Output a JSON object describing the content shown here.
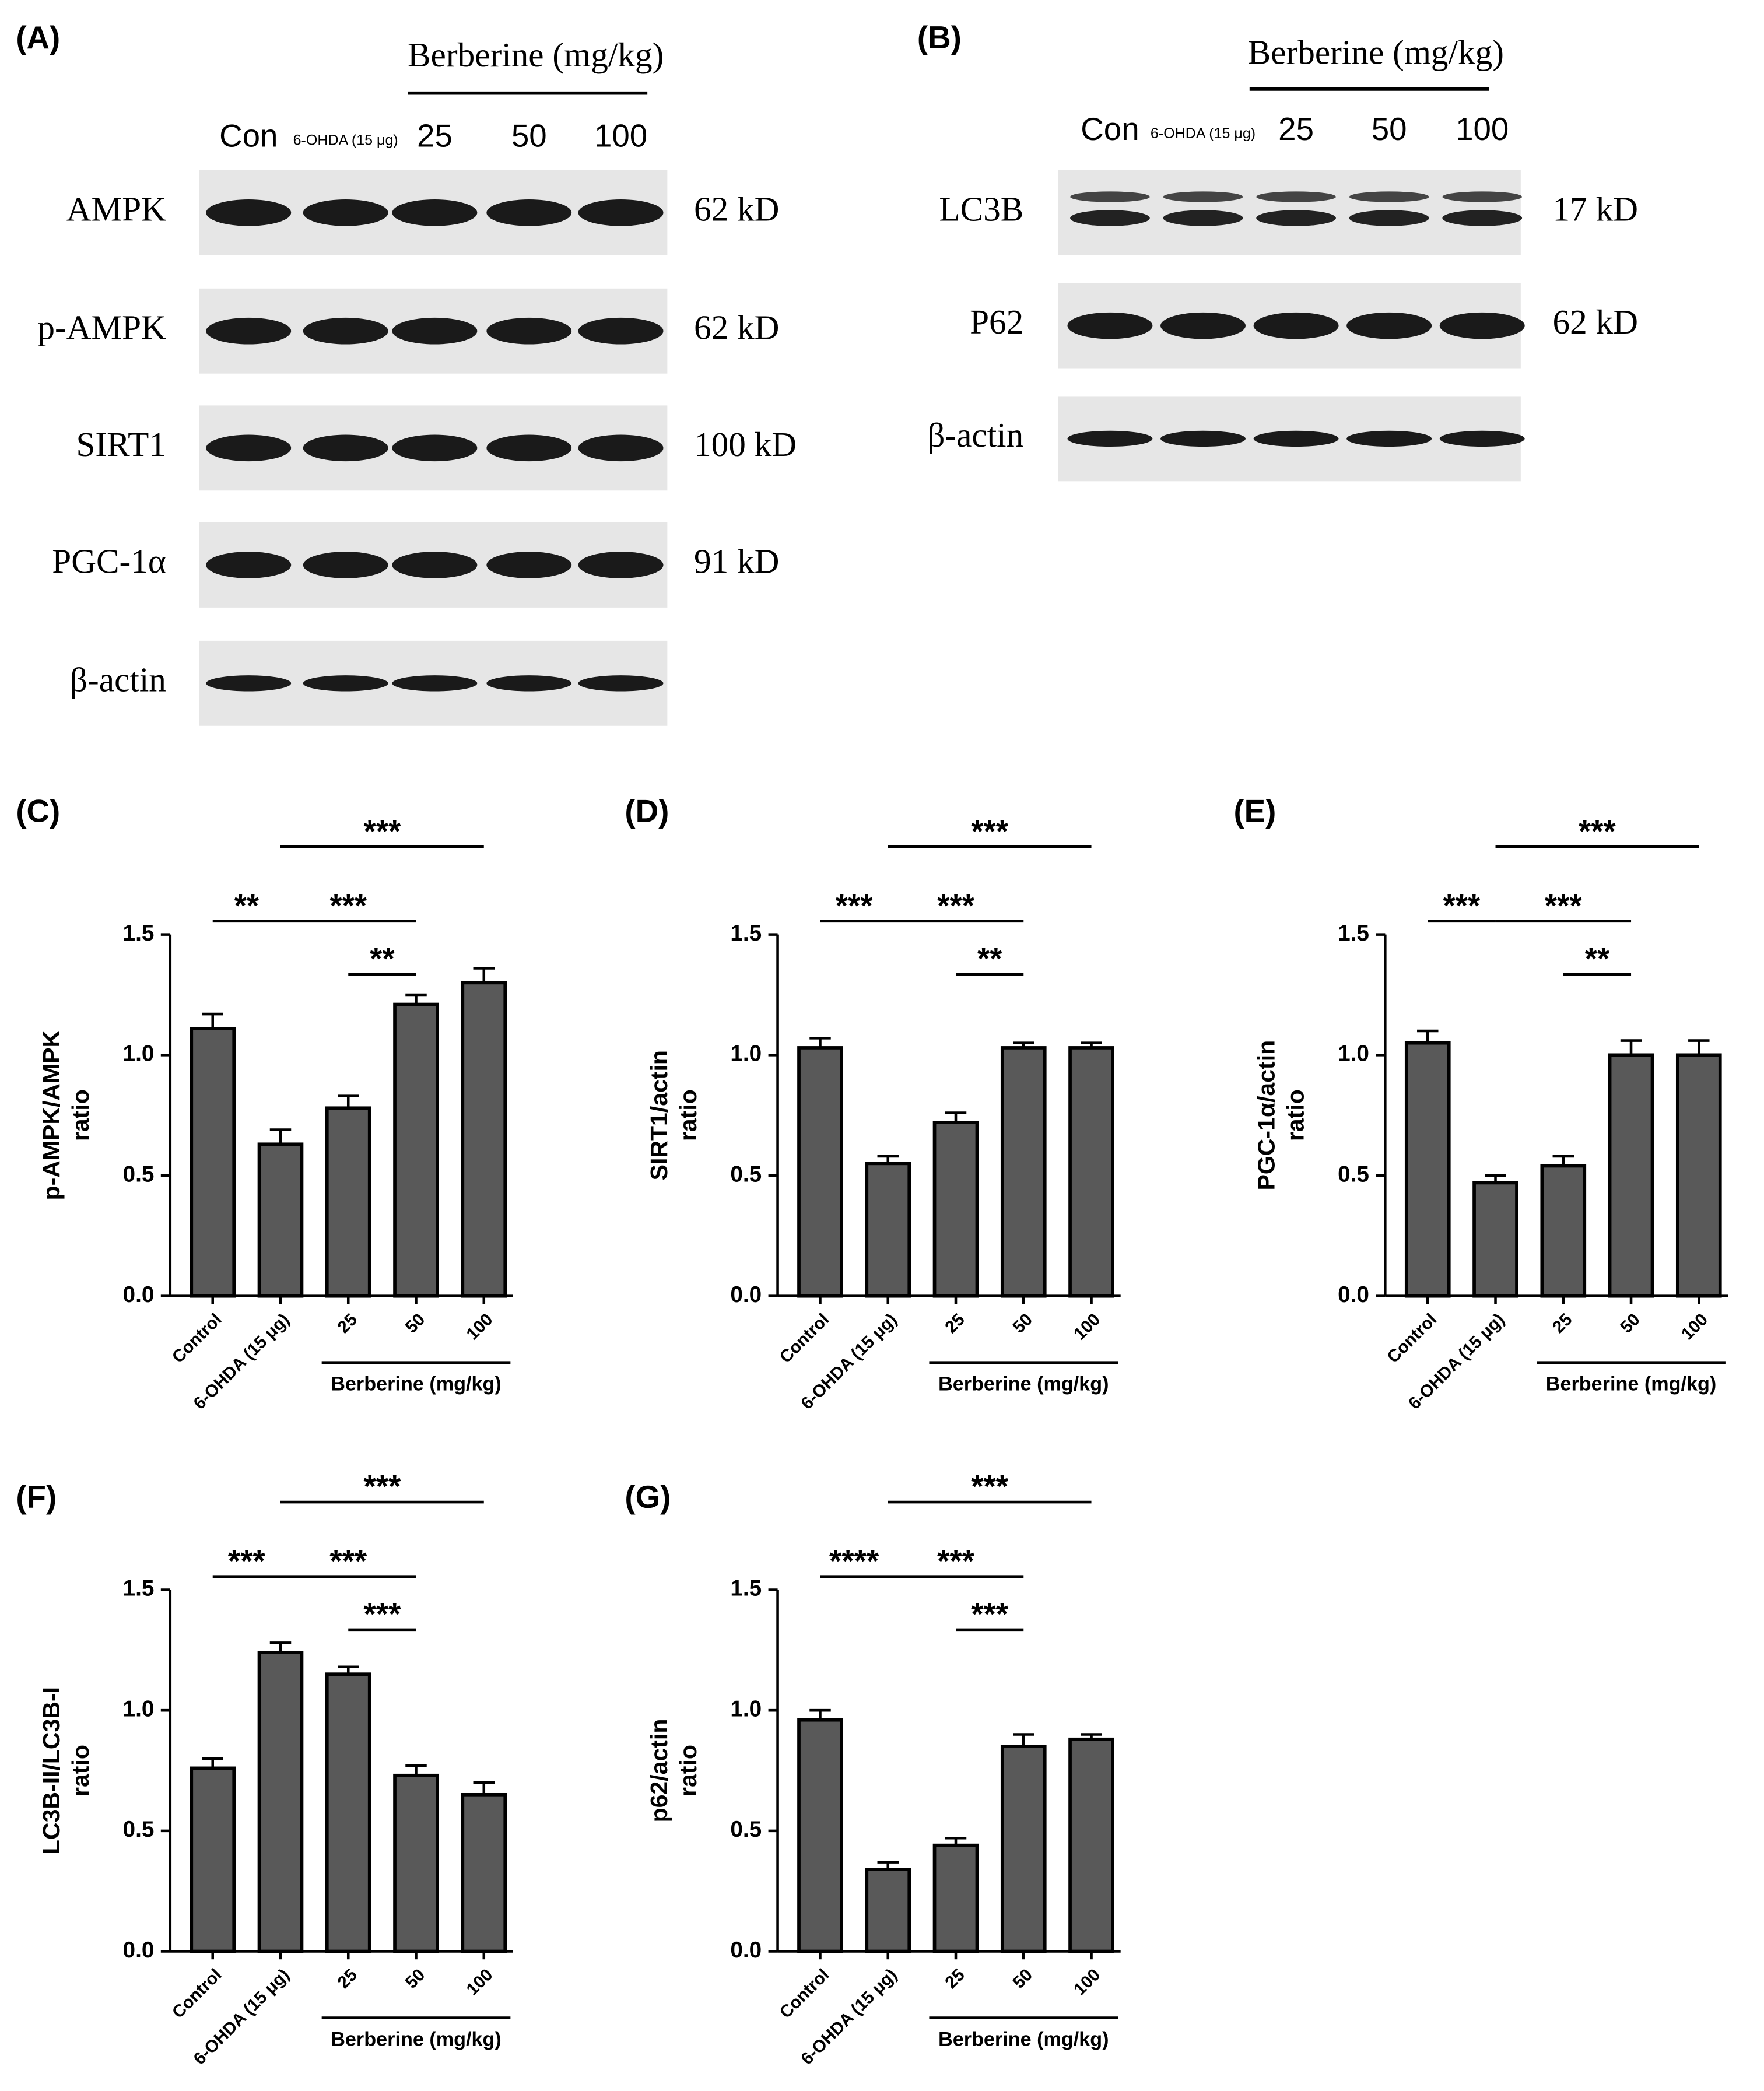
{
  "blots": [
    {
      "panel": "(A)",
      "group_label": "Berberine (mg/kg)",
      "lanes": [
        "Con",
        "6-OHDA (15 μg)",
        "25",
        "50",
        "100"
      ],
      "rows": [
        {
          "protein": "AMPK",
          "size": "62 kD"
        },
        {
          "protein": "p-AMPK",
          "size": "62 kD"
        },
        {
          "protein": "SIRT1",
          "size": "100 kD"
        },
        {
          "protein": "PGC-1α",
          "size": "91 kD"
        },
        {
          "protein": "β-actin"
        }
      ]
    },
    {
      "panel": "(B)",
      "group_label": "Berberine (mg/kg)",
      "lanes": [
        "Con",
        "6-OHDA (15 μg)",
        "25",
        "50",
        "100"
      ],
      "rows": [
        {
          "protein": "LC3B",
          "size": "17 kD"
        },
        {
          "protein": "P62",
          "size": "62 kD"
        },
        {
          "protein": "β-actin"
        }
      ]
    }
  ],
  "chart_data": [
    {
      "type": "bar",
      "panel": "(C)",
      "ylabel": [
        "p-AMPK/AMPK",
        "ratio"
      ],
      "categories": [
        "Control",
        "6-OHDA (15 μg)",
        "25",
        "50",
        "100"
      ],
      "group_label": "Berberine (mg/kg)",
      "values": [
        1.11,
        0.63,
        0.78,
        1.21,
        1.3
      ],
      "errors": [
        0.06,
        0.06,
        0.05,
        0.04,
        0.06
      ],
      "color": "#595959",
      "ylim": [
        0,
        1.5
      ],
      "yticks": [
        {
          "value": 0,
          "label": "0.0"
        },
        0.5,
        {
          "value": 1,
          "label": "1.0"
        },
        1.5
      ],
      "significance": [
        {
          "text": "**",
          "from": 0,
          "to": 1
        },
        {
          "text": "***",
          "from": 1,
          "to": 3
        },
        {
          "text": "**",
          "from": 2,
          "to": 3
        },
        {
          "text": "***",
          "from": 1,
          "to": 4
        }
      ]
    },
    {
      "type": "bar",
      "panel": "(D)",
      "ylabel": [
        "SIRT1/actin",
        "ratio"
      ],
      "categories": [
        "Control",
        "6-OHDA (15 μg)",
        "25",
        "50",
        "100"
      ],
      "group_label": "Berberine (mg/kg)",
      "values": [
        1.03,
        0.55,
        0.72,
        1.03,
        1.03
      ],
      "errors": [
        0.04,
        0.03,
        0.04,
        0.02,
        0.02
      ],
      "color": "#595959",
      "ylim": [
        0,
        1.5
      ],
      "yticks": [
        {
          "value": 0,
          "label": "0.0"
        },
        0.5,
        {
          "value": 1,
          "label": "1.0"
        },
        1.5
      ],
      "significance": [
        {
          "text": "***",
          "from": 0,
          "to": 1
        },
        {
          "text": "***",
          "from": 1,
          "to": 3
        },
        {
          "text": "**",
          "from": 2,
          "to": 3
        },
        {
          "text": "***",
          "from": 1,
          "to": 4
        }
      ]
    },
    {
      "type": "bar",
      "panel": "(E)",
      "ylabel": [
        "PGC-1α/actin",
        "ratio"
      ],
      "categories": [
        "Control",
        "6-OHDA (15 μg)",
        "25",
        "50",
        "100"
      ],
      "group_label": "Berberine (mg/kg)",
      "values": [
        1.05,
        0.47,
        0.54,
        1.0,
        1.0
      ],
      "errors": [
        0.05,
        0.03,
        0.04,
        0.06,
        0.06
      ],
      "color": "#595959",
      "ylim": [
        0,
        1.5
      ],
      "yticks": [
        {
          "value": 0,
          "label": "0.0"
        },
        0.5,
        {
          "value": 1,
          "label": "1.0"
        },
        1.5
      ],
      "significance": [
        {
          "text": "***",
          "from": 0,
          "to": 1
        },
        {
          "text": "***",
          "from": 1,
          "to": 3
        },
        {
          "text": "**",
          "from": 2,
          "to": 3
        },
        {
          "text": "***",
          "from": 1,
          "to": 4
        }
      ]
    },
    {
      "type": "bar",
      "panel": "(F)",
      "ylabel": [
        "LC3B-II/LC3B-I",
        "ratio"
      ],
      "categories": [
        "Control",
        "6-OHDA (15 μg)",
        "25",
        "50",
        "100"
      ],
      "group_label": "Berberine (mg/kg)",
      "values": [
        0.76,
        1.24,
        1.15,
        0.73,
        0.65
      ],
      "errors": [
        0.04,
        0.04,
        0.03,
        0.04,
        0.05
      ],
      "color": "#595959",
      "ylim": [
        0,
        1.5
      ],
      "yticks": [
        {
          "value": 0,
          "label": "0.0"
        },
        0.5,
        {
          "value": 1,
          "label": "1.0"
        },
        1.5
      ],
      "significance": [
        {
          "text": "***",
          "from": 0,
          "to": 1
        },
        {
          "text": "***",
          "from": 1,
          "to": 3
        },
        {
          "text": "***",
          "from": 2,
          "to": 3
        },
        {
          "text": "***",
          "from": 1,
          "to": 4
        }
      ]
    },
    {
      "type": "bar",
      "panel": "(G)",
      "ylabel": [
        "p62/actin",
        "ratio"
      ],
      "categories": [
        "Control",
        "6-OHDA (15 μg)",
        "25",
        "50",
        "100"
      ],
      "group_label": "Berberine (mg/kg)",
      "values": [
        0.96,
        0.34,
        0.44,
        0.85,
        0.88
      ],
      "errors": [
        0.04,
        0.03,
        0.03,
        0.05,
        0.02
      ],
      "color": "#595959",
      "ylim": [
        0,
        1.5
      ],
      "yticks": [
        {
          "value": 0,
          "label": "0.0"
        },
        0.5,
        {
          "value": 1,
          "label": "1.0"
        },
        1.5
      ],
      "significance": [
        {
          "text": "****",
          "from": 0,
          "to": 1
        },
        {
          "text": "***",
          "from": 1,
          "to": 3
        },
        {
          "text": "***",
          "from": 2,
          "to": 3
        },
        {
          "text": "***",
          "from": 1,
          "to": 4
        }
      ]
    }
  ]
}
